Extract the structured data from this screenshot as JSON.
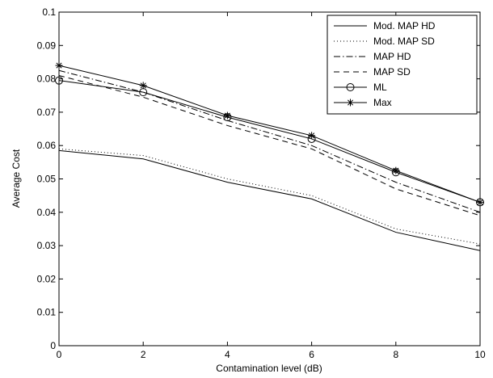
{
  "chart_data": {
    "type": "line",
    "title": "",
    "xlabel": "Contamination level (dB)",
    "ylabel": "Average Cost",
    "xlim": [
      0,
      10
    ],
    "ylim": [
      0,
      0.1
    ],
    "x_ticks": [
      "0",
      "2",
      "4",
      "6",
      "8",
      "10"
    ],
    "y_ticks": [
      "0",
      "0.01",
      "0.02",
      "0.03",
      "0.04",
      "0.05",
      "0.06",
      "0.07",
      "0.08",
      "0.09",
      "0.1"
    ],
    "grid": false,
    "legend_position": "top-right",
    "x": [
      0,
      2,
      4,
      6,
      8,
      10
    ],
    "series": [
      {
        "name": "Mod. MAP HD",
        "style": "solid",
        "marker": "none",
        "values": [
          0.0585,
          0.056,
          0.049,
          0.044,
          0.034,
          0.0285
        ]
      },
      {
        "name": "Mod. MAP SD",
        "style": "dotted",
        "marker": "none",
        "values": [
          0.059,
          0.057,
          0.05,
          0.045,
          0.035,
          0.0305
        ]
      },
      {
        "name": "MAP HD",
        "style": "dashdot",
        "marker": "none",
        "values": [
          0.0825,
          0.076,
          0.0675,
          0.06,
          0.049,
          0.04
        ]
      },
      {
        "name": "MAP SD",
        "style": "dashed",
        "marker": "none",
        "values": [
          0.081,
          0.0745,
          0.066,
          0.059,
          0.047,
          0.039
        ]
      },
      {
        "name": "ML",
        "style": "solid",
        "marker": "circle",
        "values": [
          0.0795,
          0.076,
          0.0685,
          0.062,
          0.052,
          0.043
        ]
      },
      {
        "name": "Max",
        "style": "solid",
        "marker": "star",
        "values": [
          0.084,
          0.078,
          0.069,
          0.063,
          0.0525,
          0.043
        ]
      }
    ]
  }
}
